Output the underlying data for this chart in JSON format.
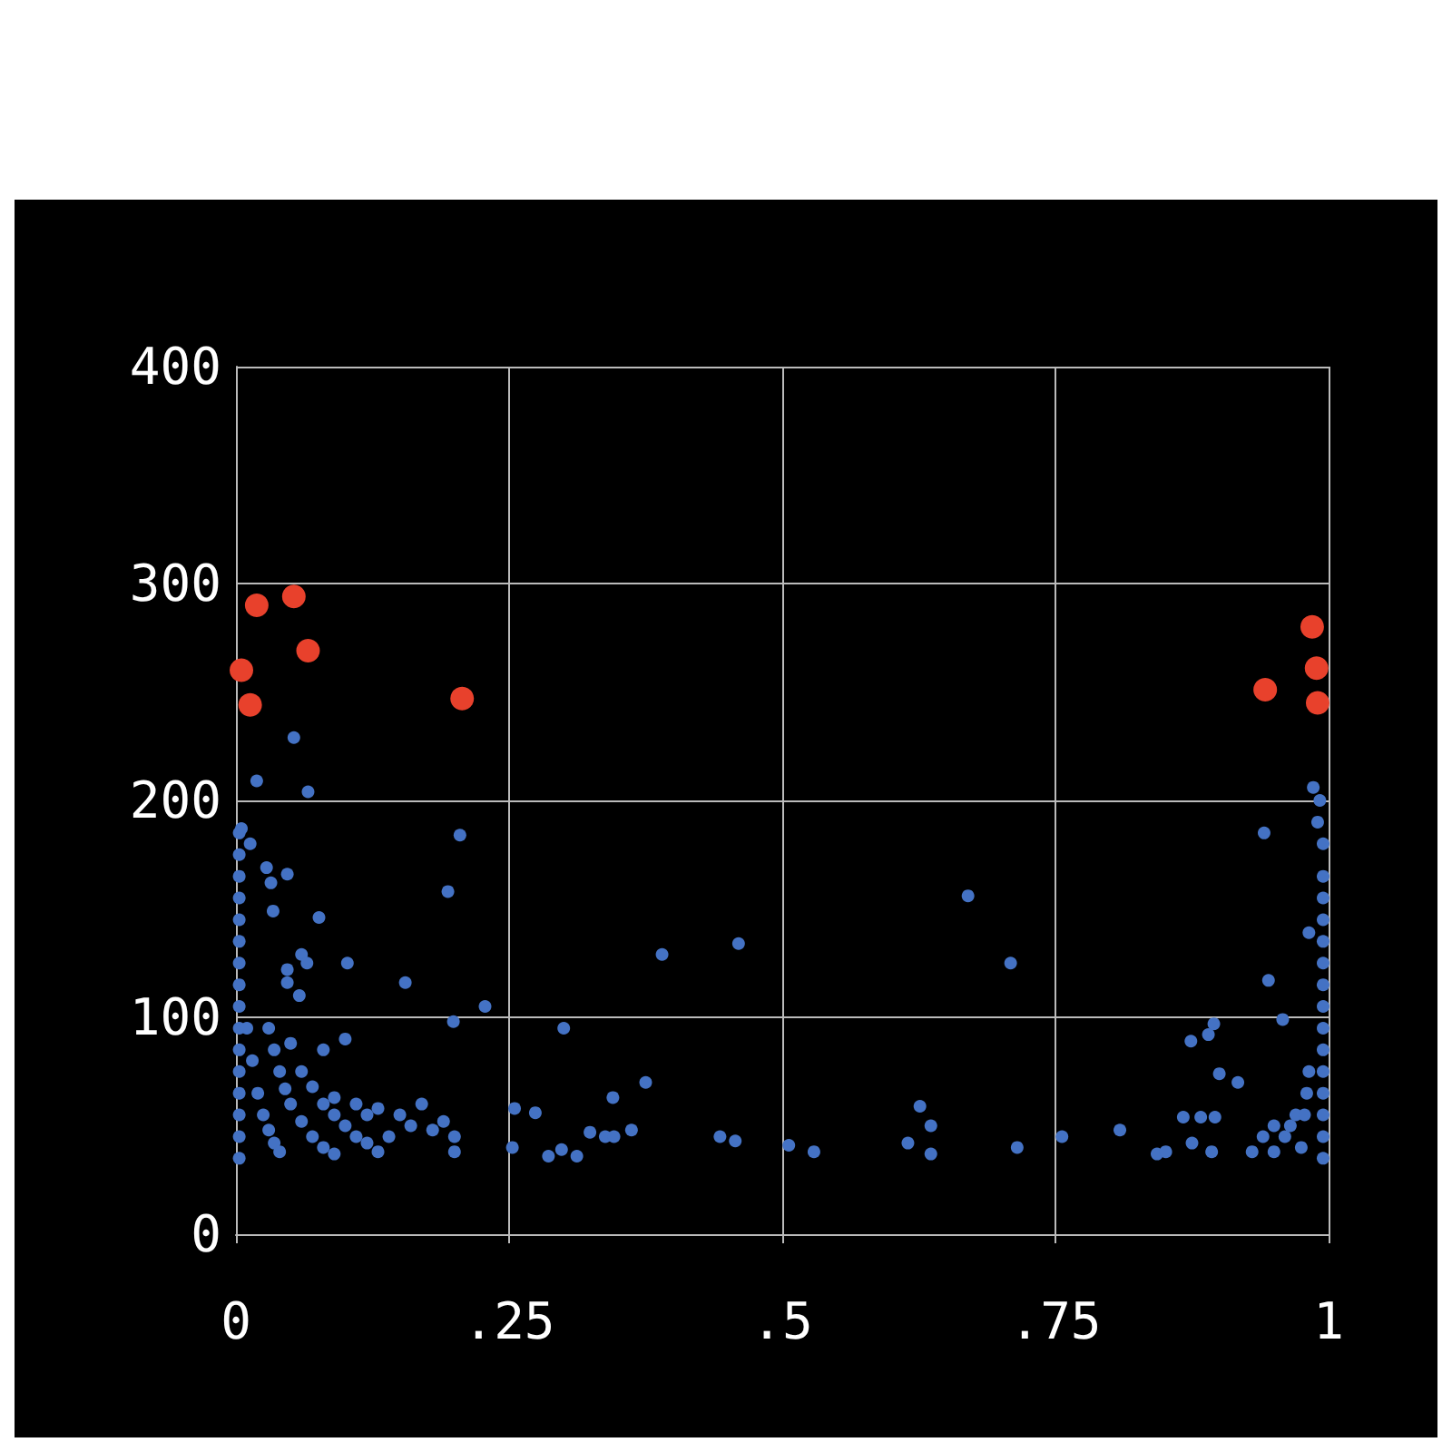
{
  "chart_data": {
    "type": "scatter",
    "xlim": [
      0,
      1
    ],
    "ylim": [
      0,
      400
    ],
    "xticks": [
      0,
      {
        "value": 0.25,
        "label": ".25"
      },
      {
        "value": 0.5,
        "label": ".5"
      },
      {
        "value": 0.75,
        "label": ".75"
      },
      1
    ],
    "yticks": [
      0,
      100,
      200,
      300,
      400
    ],
    "grid": true,
    "marker": "circle",
    "series": [
      {
        "color": "#4472c4",
        "x": [
          0.003,
          0.003,
          0.003,
          0.003,
          0.003,
          0.003,
          0.003,
          0.003,
          0.003,
          0.003,
          0.003,
          0.003,
          0.003,
          0.003,
          0.003,
          0.003,
          0.053,
          0.019,
          0.066,
          0.205,
          0.194,
          0.005,
          0.013,
          0.028,
          0.047,
          0.032,
          0.034,
          0.076,
          0.06,
          0.065,
          0.102,
          0.047,
          0.047,
          0.155,
          0.058,
          0.228,
          0.199,
          0.01,
          0.015,
          0.02,
          0.025,
          0.03,
          0.035,
          0.04,
          0.03,
          0.035,
          0.04,
          0.045,
          0.05,
          0.06,
          0.07,
          0.08,
          0.09,
          0.06,
          0.07,
          0.08,
          0.09,
          0.1,
          0.11,
          0.12,
          0.13,
          0.15,
          0.16,
          0.17,
          0.18,
          0.19,
          0.2,
          0.2,
          0.14,
          0.12,
          0.13,
          0.11,
          0.09,
          0.1,
          0.08,
          0.05,
          0.39,
          0.46,
          0.67,
          0.3,
          0.375,
          0.345,
          0.255,
          0.274,
          0.253,
          0.286,
          0.298,
          0.312,
          0.324,
          0.338,
          0.346,
          0.362,
          0.443,
          0.457,
          0.506,
          0.529,
          0.615,
          0.626,
          0.636,
          0.636,
          0.709,
          0.715,
          0.756,
          0.809,
          0.843,
          0.851,
          0.875,
          0.893,
          0.867,
          0.883,
          0.896,
          0.874,
          0.89,
          0.895,
          0.9,
          0.917,
          0.945,
          0.958,
          0.982,
          0.941,
          0.986,
          0.93,
          0.94,
          0.95,
          0.95,
          0.96,
          0.965,
          0.97,
          0.975,
          0.978,
          0.98,
          0.982,
          0.995,
          0.995,
          0.995,
          0.995,
          0.995,
          0.995,
          0.995,
          0.995,
          0.995,
          0.995,
          0.995,
          0.995,
          0.995,
          0.995,
          0.995,
          0.99,
          0.992
        ],
        "values": [
          35,
          45,
          55,
          65,
          75,
          85,
          95,
          105,
          115,
          125,
          135,
          145,
          155,
          165,
          175,
          185,
          229,
          209,
          204,
          184,
          158,
          187,
          180,
          169,
          166,
          162,
          149,
          146,
          129,
          125,
          125,
          122,
          116,
          116,
          110,
          105,
          98,
          95,
          80,
          65,
          55,
          48,
          42,
          38,
          95,
          85,
          75,
          67,
          60,
          52,
          45,
          40,
          37,
          75,
          68,
          60,
          55,
          50,
          45,
          42,
          38,
          55,
          50,
          60,
          48,
          52,
          45,
          38,
          45,
          55,
          58,
          60,
          63,
          90,
          85,
          88,
          129,
          134,
          156,
          95,
          70,
          63,
          58,
          56,
          40,
          36,
          39,
          36,
          47,
          45,
          45,
          48,
          45,
          43,
          41,
          38,
          42,
          59,
          50,
          37,
          125,
          40,
          45,
          48,
          37,
          38,
          42,
          38,
          54,
          54,
          54,
          89,
          92,
          97,
          74,
          70,
          117,
          99,
          139,
          185,
          206,
          38,
          45,
          50,
          38,
          45,
          50,
          55,
          40,
          55,
          65,
          75,
          35,
          45,
          55,
          65,
          75,
          85,
          95,
          105,
          115,
          125,
          135,
          145,
          155,
          165,
          180,
          190,
          200
        ]
      },
      {
        "color": "#e8412c",
        "x": [
          0.005,
          0.013,
          0.019,
          0.053,
          0.066,
          0.207,
          0.942,
          0.985,
          0.989,
          0.99
        ],
        "values": [
          260,
          244,
          290,
          294,
          269,
          247,
          251,
          280,
          261,
          245
        ]
      }
    ]
  }
}
